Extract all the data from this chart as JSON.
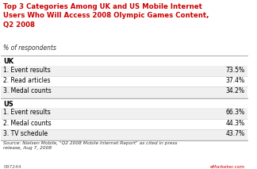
{
  "title": "Top 3 Categories Among UK and US Mobile Internet\nUsers Who Will Access 2008 Olympic Games Content,\nQ2 2008",
  "subtitle": "% of respondents",
  "title_color": "#cc0000",
  "background_color": "#ffffff",
  "uk_header": "UK",
  "us_header": "US",
  "uk_rows": [
    {
      "label": "1. Event results",
      "value": "73.5%"
    },
    {
      "label": "2. Read articles",
      "value": "37.4%"
    },
    {
      "label": "3. Medal counts",
      "value": "34.2%"
    }
  ],
  "us_rows": [
    {
      "label": "1. Event results",
      "value": "66.3%"
    },
    {
      "label": "2. Medal counts",
      "value": "44.3%"
    },
    {
      "label": "3. TV schedule",
      "value": "43.7%"
    }
  ],
  "source": "Source: Nielsen Mobile, \"Q2 2008 Mobile Internet Report\" as cited in press\nrelease, Aug 7, 2008",
  "footer_id": "097244",
  "footer_brand": "eMarketer.com",
  "line_color_major": "#aaaaaa",
  "line_color_minor": "#cccccc",
  "row_bg_even": "#f0f0f0",
  "row_bg_odd": "#ffffff"
}
